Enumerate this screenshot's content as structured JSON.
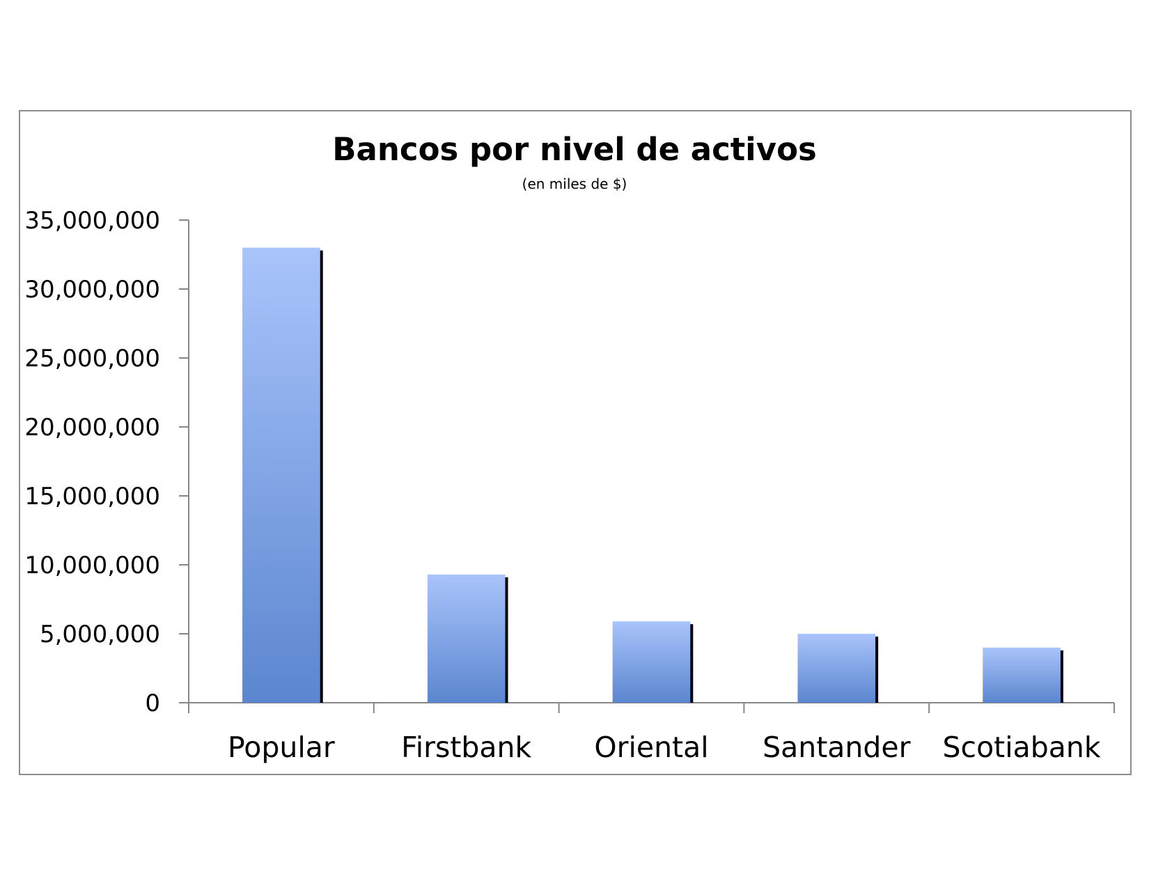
{
  "chart_data": {
    "type": "bar",
    "title": "Bancos por nivel de activos",
    "subtitle": "(en miles de $)",
    "categories": [
      "Popular",
      "Firstbank",
      "Oriental",
      "Santander",
      "Scotiabank"
    ],
    "values": [
      33000000,
      9300000,
      5900000,
      5000000,
      4000000
    ],
    "ylim": [
      0,
      35000000
    ],
    "yticks": [
      0,
      5000000,
      10000000,
      15000000,
      20000000,
      25000000,
      30000000,
      35000000
    ],
    "ytick_labels": [
      "0",
      "5,000,000",
      "10,000,000",
      "15,000,000",
      "20,000,000",
      "25,000,000",
      "30,000,000",
      "35,000,000"
    ],
    "xlabel": "",
    "ylabel": "",
    "grid": false,
    "legend": "none",
    "colors": {
      "bar_top": "#a9c4fb",
      "bar_bottom": "#5b86cf",
      "bar_shadow": "#000000",
      "axis": "#868686",
      "frame": "#8c8c8c"
    }
  }
}
